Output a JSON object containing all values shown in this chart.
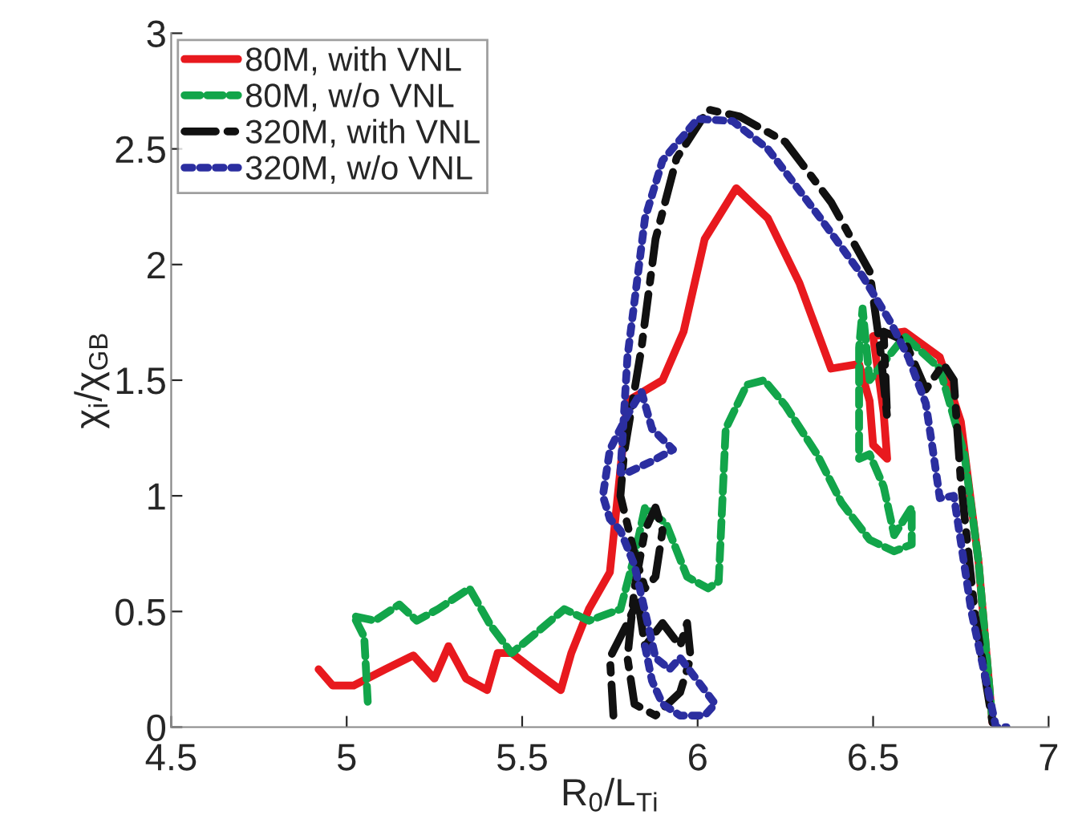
{
  "chart_data": {
    "type": "line",
    "xlabel": "R$_{0}$/L$_{Ti}$",
    "ylabel": "χ$_{i}$/χ$_{GB}$",
    "xlim": [
      4.5,
      7
    ],
    "xticks": [
      4.5,
      5,
      5.5,
      6,
      6.5,
      7
    ],
    "ylim": [
      0,
      3
    ],
    "yticks": [
      0,
      0.5,
      1,
      1.5,
      2,
      2.5,
      3
    ],
    "grid": false,
    "legend": "top left",
    "marker": "none",
    "series": [
      {
        "name": "80M, with VNL",
        "color": "#e8191e",
        "line_style": "solid",
        "x": [
          4.92,
          4.96,
          5.02,
          5.11,
          5.19,
          5.25,
          5.29,
          5.34,
          5.4,
          5.43,
          5.47,
          5.53,
          5.61,
          5.64,
          5.69,
          5.75,
          5.8,
          5.9,
          5.96,
          6.02,
          6.11,
          6.2,
          6.29,
          6.38,
          6.46,
          6.49,
          6.5,
          6.54,
          6.53,
          6.5,
          6.59,
          6.69,
          6.75,
          6.8,
          6.84
        ],
        "values": [
          0.25,
          0.18,
          0.18,
          0.25,
          0.31,
          0.21,
          0.35,
          0.21,
          0.16,
          0.32,
          0.32,
          0.25,
          0.16,
          0.32,
          0.51,
          0.67,
          1.41,
          1.5,
          1.71,
          2.11,
          2.33,
          2.2,
          1.92,
          1.55,
          1.57,
          1.41,
          1.22,
          1.16,
          1.36,
          1.69,
          1.71,
          1.6,
          1.32,
          0.72,
          0.02
        ]
      },
      {
        "name": "80M, w/o VNL",
        "color": "#12a54a",
        "line_style": "dashed",
        "x": [
          5.06,
          5.05,
          5.02,
          5.08,
          5.15,
          5.2,
          5.26,
          5.35,
          5.41,
          5.47,
          5.55,
          5.62,
          5.69,
          5.78,
          5.82,
          5.85,
          5.91,
          5.97,
          6.03,
          6.06,
          6.08,
          6.14,
          6.19,
          6.25,
          6.34,
          6.41,
          6.49,
          6.56,
          6.61,
          6.61,
          6.56,
          6.53,
          6.49,
          6.46,
          6.46,
          6.47,
          6.49,
          6.59,
          6.69,
          6.76,
          6.8,
          6.84
        ],
        "values": [
          0.11,
          0.39,
          0.48,
          0.46,
          0.53,
          0.46,
          0.51,
          0.6,
          0.44,
          0.32,
          0.42,
          0.51,
          0.46,
          0.51,
          0.74,
          0.95,
          0.88,
          0.65,
          0.6,
          0.63,
          1.29,
          1.48,
          1.5,
          1.39,
          1.18,
          0.97,
          0.81,
          0.76,
          0.79,
          0.95,
          0.83,
          1.04,
          1.18,
          1.16,
          1.64,
          1.81,
          1.5,
          1.69,
          1.55,
          1.18,
          0.72,
          0.02
        ]
      },
      {
        "name": "320M, with VNL",
        "color": "#111111",
        "line_style": "dashdot",
        "x": [
          5.76,
          5.75,
          5.8,
          5.83,
          5.85,
          5.9,
          5.95,
          5.97,
          5.98,
          5.95,
          5.88,
          5.82,
          5.8,
          5.82,
          5.85,
          5.88,
          5.9,
          5.88,
          5.85,
          5.82,
          5.78,
          5.79,
          5.84,
          5.88,
          5.94,
          6.03,
          6.12,
          6.25,
          6.38,
          6.49,
          6.52,
          6.54,
          6.53,
          6.59,
          6.65,
          6.7,
          6.73,
          6.75,
          6.79,
          6.84
        ],
        "values": [
          0.05,
          0.3,
          0.45,
          0.55,
          0.35,
          0.45,
          0.35,
          0.45,
          0.3,
          0.15,
          0.05,
          0.1,
          0.3,
          0.6,
          0.85,
          0.95,
          0.85,
          0.65,
          0.6,
          0.75,
          1.0,
          1.18,
          1.64,
          2.11,
          2.46,
          2.67,
          2.64,
          2.53,
          2.27,
          1.97,
          1.64,
          1.34,
          1.71,
          1.67,
          1.46,
          1.57,
          1.5,
          1.06,
          0.49,
          0.02
        ]
      },
      {
        "name": "320M, w/o VNL",
        "color": "#2b2ea0",
        "line_style": "dotted",
        "x": [
          5.85,
          5.87,
          5.9,
          5.95,
          6.02,
          6.05,
          6.0,
          5.95,
          5.92,
          5.88,
          5.85,
          5.82,
          5.78,
          5.75,
          5.73,
          5.75,
          5.8,
          5.84,
          5.87,
          5.93,
          5.87,
          5.8,
          5.78,
          5.8,
          5.85,
          5.9,
          6.0,
          6.1,
          6.2,
          6.35,
          6.47,
          6.55,
          6.6,
          6.65,
          6.67,
          6.69,
          6.73,
          6.78,
          6.85,
          6.88
        ],
        "values": [
          0.35,
          0.2,
          0.1,
          0.05,
          0.05,
          0.1,
          0.2,
          0.3,
          0.25,
          0.3,
          0.5,
          0.7,
          0.85,
          0.9,
          1.0,
          1.2,
          1.35,
          1.45,
          1.29,
          1.2,
          1.15,
          1.1,
          1.1,
          1.6,
          2.2,
          2.45,
          2.63,
          2.62,
          2.5,
          2.2,
          1.95,
          1.75,
          1.6,
          1.4,
          1.2,
          0.99,
          1.0,
          0.5,
          0.0,
          0.0
        ]
      }
    ]
  }
}
